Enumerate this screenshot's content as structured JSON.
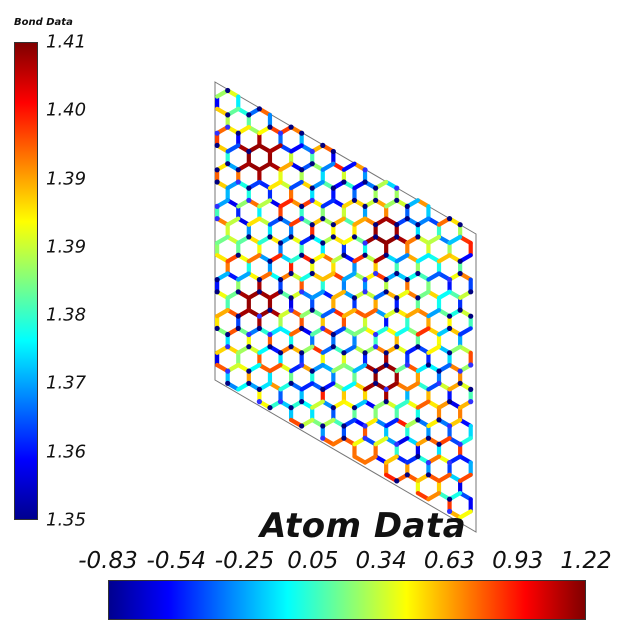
{
  "bond_legend": {
    "title": "Bond Data",
    "ticks": [
      "1.41",
      "1.40",
      "1.39",
      "1.39",
      "1.38",
      "1.37",
      "1.36",
      "1.35"
    ],
    "min": 1.35,
    "max": 1.41
  },
  "atom_legend": {
    "title": "Atom Data",
    "ticks": [
      "-0.83",
      "-0.54",
      "-0.25",
      "0.05",
      "0.34",
      "0.63",
      "0.93",
      "1.22"
    ],
    "min": -0.83,
    "max": 1.22
  },
  "colormap": [
    "#00008f",
    "#0000ff",
    "#0080ff",
    "#00ffff",
    "#80ff80",
    "#ffff00",
    "#ff8000",
    "#ff0000",
    "#800000"
  ]
}
